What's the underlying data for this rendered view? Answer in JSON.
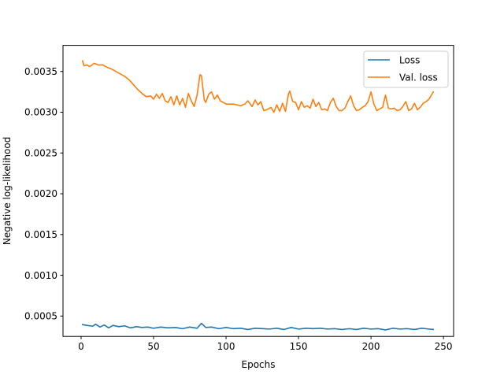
{
  "chart_data": {
    "type": "line",
    "title": "",
    "xlabel": "Epochs",
    "ylabel": "Negative log-likelihood",
    "xlim": [
      -12.5,
      257
    ],
    "ylim": [
      0.00025,
      0.00382
    ],
    "x_ticks": [
      0,
      50,
      100,
      150,
      200,
      250
    ],
    "x_tick_labels": [
      "0",
      "50",
      "100",
      "150",
      "200",
      "250"
    ],
    "y_ticks": [
      0.0005,
      0.001,
      0.0015,
      0.002,
      0.0025,
      0.003,
      0.0035
    ],
    "y_tick_labels": [
      "0.0005",
      "0.0010",
      "0.0015",
      "0.0020",
      "0.0025",
      "0.0030",
      "0.0035"
    ],
    "grid": false,
    "legend_position": "top-right",
    "series": [
      {
        "name": "Loss",
        "color": "#1f77b4",
        "points": [
          [
            1,
            0.000395
          ],
          [
            4,
            0.000385
          ],
          [
            8,
            0.000375
          ],
          [
            10,
            0.0004
          ],
          [
            13,
            0.000365
          ],
          [
            16,
            0.00039
          ],
          [
            19,
            0.000355
          ],
          [
            22,
            0.000385
          ],
          [
            26,
            0.00037
          ],
          [
            30,
            0.00038
          ],
          [
            34,
            0.000355
          ],
          [
            38,
            0.00037
          ],
          [
            42,
            0.00036
          ],
          [
            46,
            0.000365
          ],
          [
            50,
            0.00035
          ],
          [
            55,
            0.000365
          ],
          [
            60,
            0.000355
          ],
          [
            65,
            0.00036
          ],
          [
            70,
            0.000345
          ],
          [
            75,
            0.000365
          ],
          [
            80,
            0.00035
          ],
          [
            83,
            0.00041
          ],
          [
            86,
            0.00036
          ],
          [
            90,
            0.000365
          ],
          [
            95,
            0.000345
          ],
          [
            100,
            0.00036
          ],
          [
            105,
            0.000345
          ],
          [
            110,
            0.00035
          ],
          [
            115,
            0.000335
          ],
          [
            120,
            0.00035
          ],
          [
            125,
            0.000345
          ],
          [
            130,
            0.00034
          ],
          [
            135,
            0.00035
          ],
          [
            140,
            0.000335
          ],
          [
            145,
            0.00036
          ],
          [
            150,
            0.00034
          ],
          [
            155,
            0.00035
          ],
          [
            160,
            0.000345
          ],
          [
            165,
            0.00035
          ],
          [
            170,
            0.00034
          ],
          [
            175,
            0.000345
          ],
          [
            180,
            0.000335
          ],
          [
            185,
            0.000345
          ],
          [
            190,
            0.000335
          ],
          [
            195,
            0.00035
          ],
          [
            200,
            0.00034
          ],
          [
            205,
            0.000345
          ],
          [
            210,
            0.00033
          ],
          [
            215,
            0.00035
          ],
          [
            220,
            0.00034
          ],
          [
            225,
            0.000345
          ],
          [
            230,
            0.000335
          ],
          [
            235,
            0.00035
          ],
          [
            240,
            0.00034
          ],
          [
            243,
            0.000335
          ]
        ]
      },
      {
        "name": "Val. loss",
        "color": "#ff7f0e",
        "points": [
          [
            1,
            0.00363
          ],
          [
            2,
            0.00357
          ],
          [
            4,
            0.00358
          ],
          [
            6,
            0.00356
          ],
          [
            9,
            0.0036
          ],
          [
            12,
            0.00358
          ],
          [
            15,
            0.00358
          ],
          [
            18,
            0.00355
          ],
          [
            21,
            0.00353
          ],
          [
            24,
            0.0035
          ],
          [
            27,
            0.00347
          ],
          [
            30,
            0.00344
          ],
          [
            33,
            0.0034
          ],
          [
            36,
            0.00334
          ],
          [
            39,
            0.00328
          ],
          [
            42,
            0.00323
          ],
          [
            45,
            0.00319
          ],
          [
            48,
            0.0032
          ],
          [
            50,
            0.00316
          ],
          [
            52,
            0.00322
          ],
          [
            54,
            0.00317
          ],
          [
            56,
            0.00323
          ],
          [
            58,
            0.00314
          ],
          [
            60,
            0.00312
          ],
          [
            62,
            0.00319
          ],
          [
            64,
            0.00309
          ],
          [
            66,
            0.0032
          ],
          [
            68,
            0.00309
          ],
          [
            70,
            0.00317
          ],
          [
            72,
            0.00306
          ],
          [
            74,
            0.00323
          ],
          [
            76,
            0.00314
          ],
          [
            78,
            0.00307
          ],
          [
            80,
            0.00321
          ],
          [
            82,
            0.00346
          ],
          [
            83,
            0.00345
          ],
          [
            85,
            0.00315
          ],
          [
            86,
            0.00312
          ],
          [
            88,
            0.00322
          ],
          [
            90,
            0.00325
          ],
          [
            92,
            0.00316
          ],
          [
            94,
            0.00321
          ],
          [
            96,
            0.00314
          ],
          [
            98,
            0.00312
          ],
          [
            100,
            0.0031
          ],
          [
            105,
            0.0031
          ],
          [
            110,
            0.00308
          ],
          [
            113,
            0.0031
          ],
          [
            115,
            0.00314
          ],
          [
            118,
            0.00307
          ],
          [
            120,
            0.00315
          ],
          [
            122,
            0.00309
          ],
          [
            124,
            0.00313
          ],
          [
            126,
            0.00302
          ],
          [
            128,
            0.00303
          ],
          [
            131,
            0.00306
          ],
          [
            133,
            0.003
          ],
          [
            135,
            0.00309
          ],
          [
            137,
            0.00301
          ],
          [
            139,
            0.00311
          ],
          [
            141,
            0.00301
          ],
          [
            143,
            0.00322
          ],
          [
            144,
            0.00326
          ],
          [
            146,
            0.00313
          ],
          [
            148,
            0.00312
          ],
          [
            150,
            0.00303
          ],
          [
            152,
            0.00313
          ],
          [
            154,
            0.00306
          ],
          [
            156,
            0.00308
          ],
          [
            158,
            0.00305
          ],
          [
            160,
            0.00316
          ],
          [
            162,
            0.00307
          ],
          [
            164,
            0.00312
          ],
          [
            166,
            0.00303
          ],
          [
            168,
            0.00304
          ],
          [
            170,
            0.00302
          ],
          [
            172,
            0.00312
          ],
          [
            174,
            0.00317
          ],
          [
            176,
            0.00307
          ],
          [
            178,
            0.00302
          ],
          [
            180,
            0.00302
          ],
          [
            182,
            0.00305
          ],
          [
            184,
            0.00313
          ],
          [
            186,
            0.0032
          ],
          [
            188,
            0.00308
          ],
          [
            190,
            0.00302
          ],
          [
            192,
            0.00303
          ],
          [
            194,
            0.00306
          ],
          [
            196,
            0.00308
          ],
          [
            198,
            0.00313
          ],
          [
            200,
            0.00325
          ],
          [
            202,
            0.0031
          ],
          [
            204,
            0.00302
          ],
          [
            206,
            0.00304
          ],
          [
            208,
            0.00306
          ],
          [
            210,
            0.00321
          ],
          [
            212,
            0.00305
          ],
          [
            214,
            0.00304
          ],
          [
            216,
            0.00305
          ],
          [
            218,
            0.00302
          ],
          [
            220,
            0.00303
          ],
          [
            222,
            0.00307
          ],
          [
            224,
            0.00313
          ],
          [
            226,
            0.00302
          ],
          [
            228,
            0.00304
          ],
          [
            230,
            0.00311
          ],
          [
            232,
            0.00303
          ],
          [
            234,
            0.00306
          ],
          [
            236,
            0.00311
          ],
          [
            238,
            0.00313
          ],
          [
            240,
            0.00316
          ],
          [
            242,
            0.00322
          ],
          [
            243,
            0.00325
          ]
        ]
      }
    ]
  }
}
